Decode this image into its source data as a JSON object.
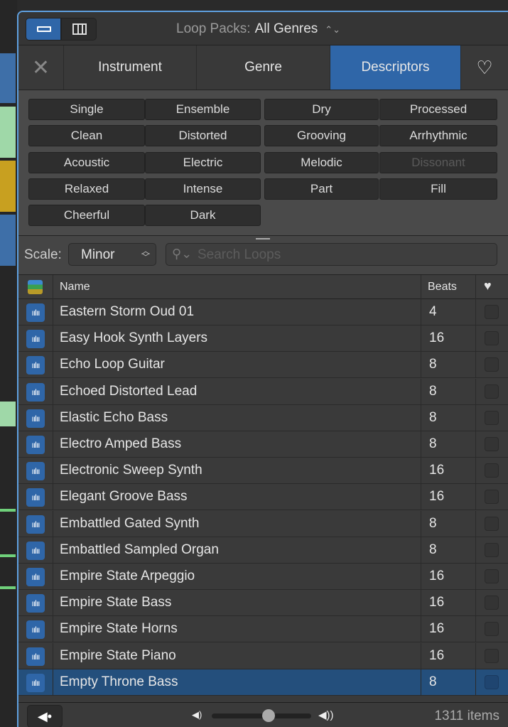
{
  "topbar": {
    "loop_packs_label": "Loop Packs:",
    "loop_packs_value": "All Genres"
  },
  "tabs": [
    {
      "label": "Instrument"
    },
    {
      "label": "Genre"
    },
    {
      "label": "Descriptors",
      "active": true
    }
  ],
  "filters": [
    [
      "Single",
      "Ensemble",
      "Dry",
      "Processed"
    ],
    [
      "Clean",
      "Distorted",
      "Grooving",
      "Arrhythmic"
    ],
    [
      "Acoustic",
      "Electric",
      "Melodic",
      "Dissonant"
    ],
    [
      "Relaxed",
      "Intense",
      "Part",
      "Fill"
    ],
    [
      "Cheerful",
      "Dark"
    ]
  ],
  "disabled_filters": [
    "Dissonant"
  ],
  "scale": {
    "label": "Scale:",
    "value": "Minor"
  },
  "search": {
    "placeholder": "Search Loops"
  },
  "table": {
    "col_name": "Name",
    "col_beats": "Beats",
    "rows": [
      {
        "name": "Eastern Storm Oud 01",
        "beats": "4"
      },
      {
        "name": "Easy Hook Synth Layers",
        "beats": "16"
      },
      {
        "name": "Echo Loop Guitar",
        "beats": "8"
      },
      {
        "name": "Echoed Distorted Lead",
        "beats": "8"
      },
      {
        "name": "Elastic Echo Bass",
        "beats": "8"
      },
      {
        "name": "Electro Amped Bass",
        "beats": "8"
      },
      {
        "name": "Electronic Sweep Synth",
        "beats": "16"
      },
      {
        "name": "Elegant Groove Bass",
        "beats": "16"
      },
      {
        "name": "Embattled Gated Synth",
        "beats": "8"
      },
      {
        "name": "Embattled Sampled Organ",
        "beats": "8"
      },
      {
        "name": "Empire State Arpeggio",
        "beats": "16"
      },
      {
        "name": "Empire State Bass",
        "beats": "16"
      },
      {
        "name": "Empire State Horns",
        "beats": "16"
      },
      {
        "name": "Empire State Piano",
        "beats": "16"
      },
      {
        "name": "Empty Throne Bass",
        "beats": "8",
        "selected": true
      }
    ]
  },
  "footer": {
    "item_count": "1311 items",
    "volume": 0.57
  },
  "colors": {
    "accent": "#2f66a8",
    "selected_row": "#244f7c"
  }
}
